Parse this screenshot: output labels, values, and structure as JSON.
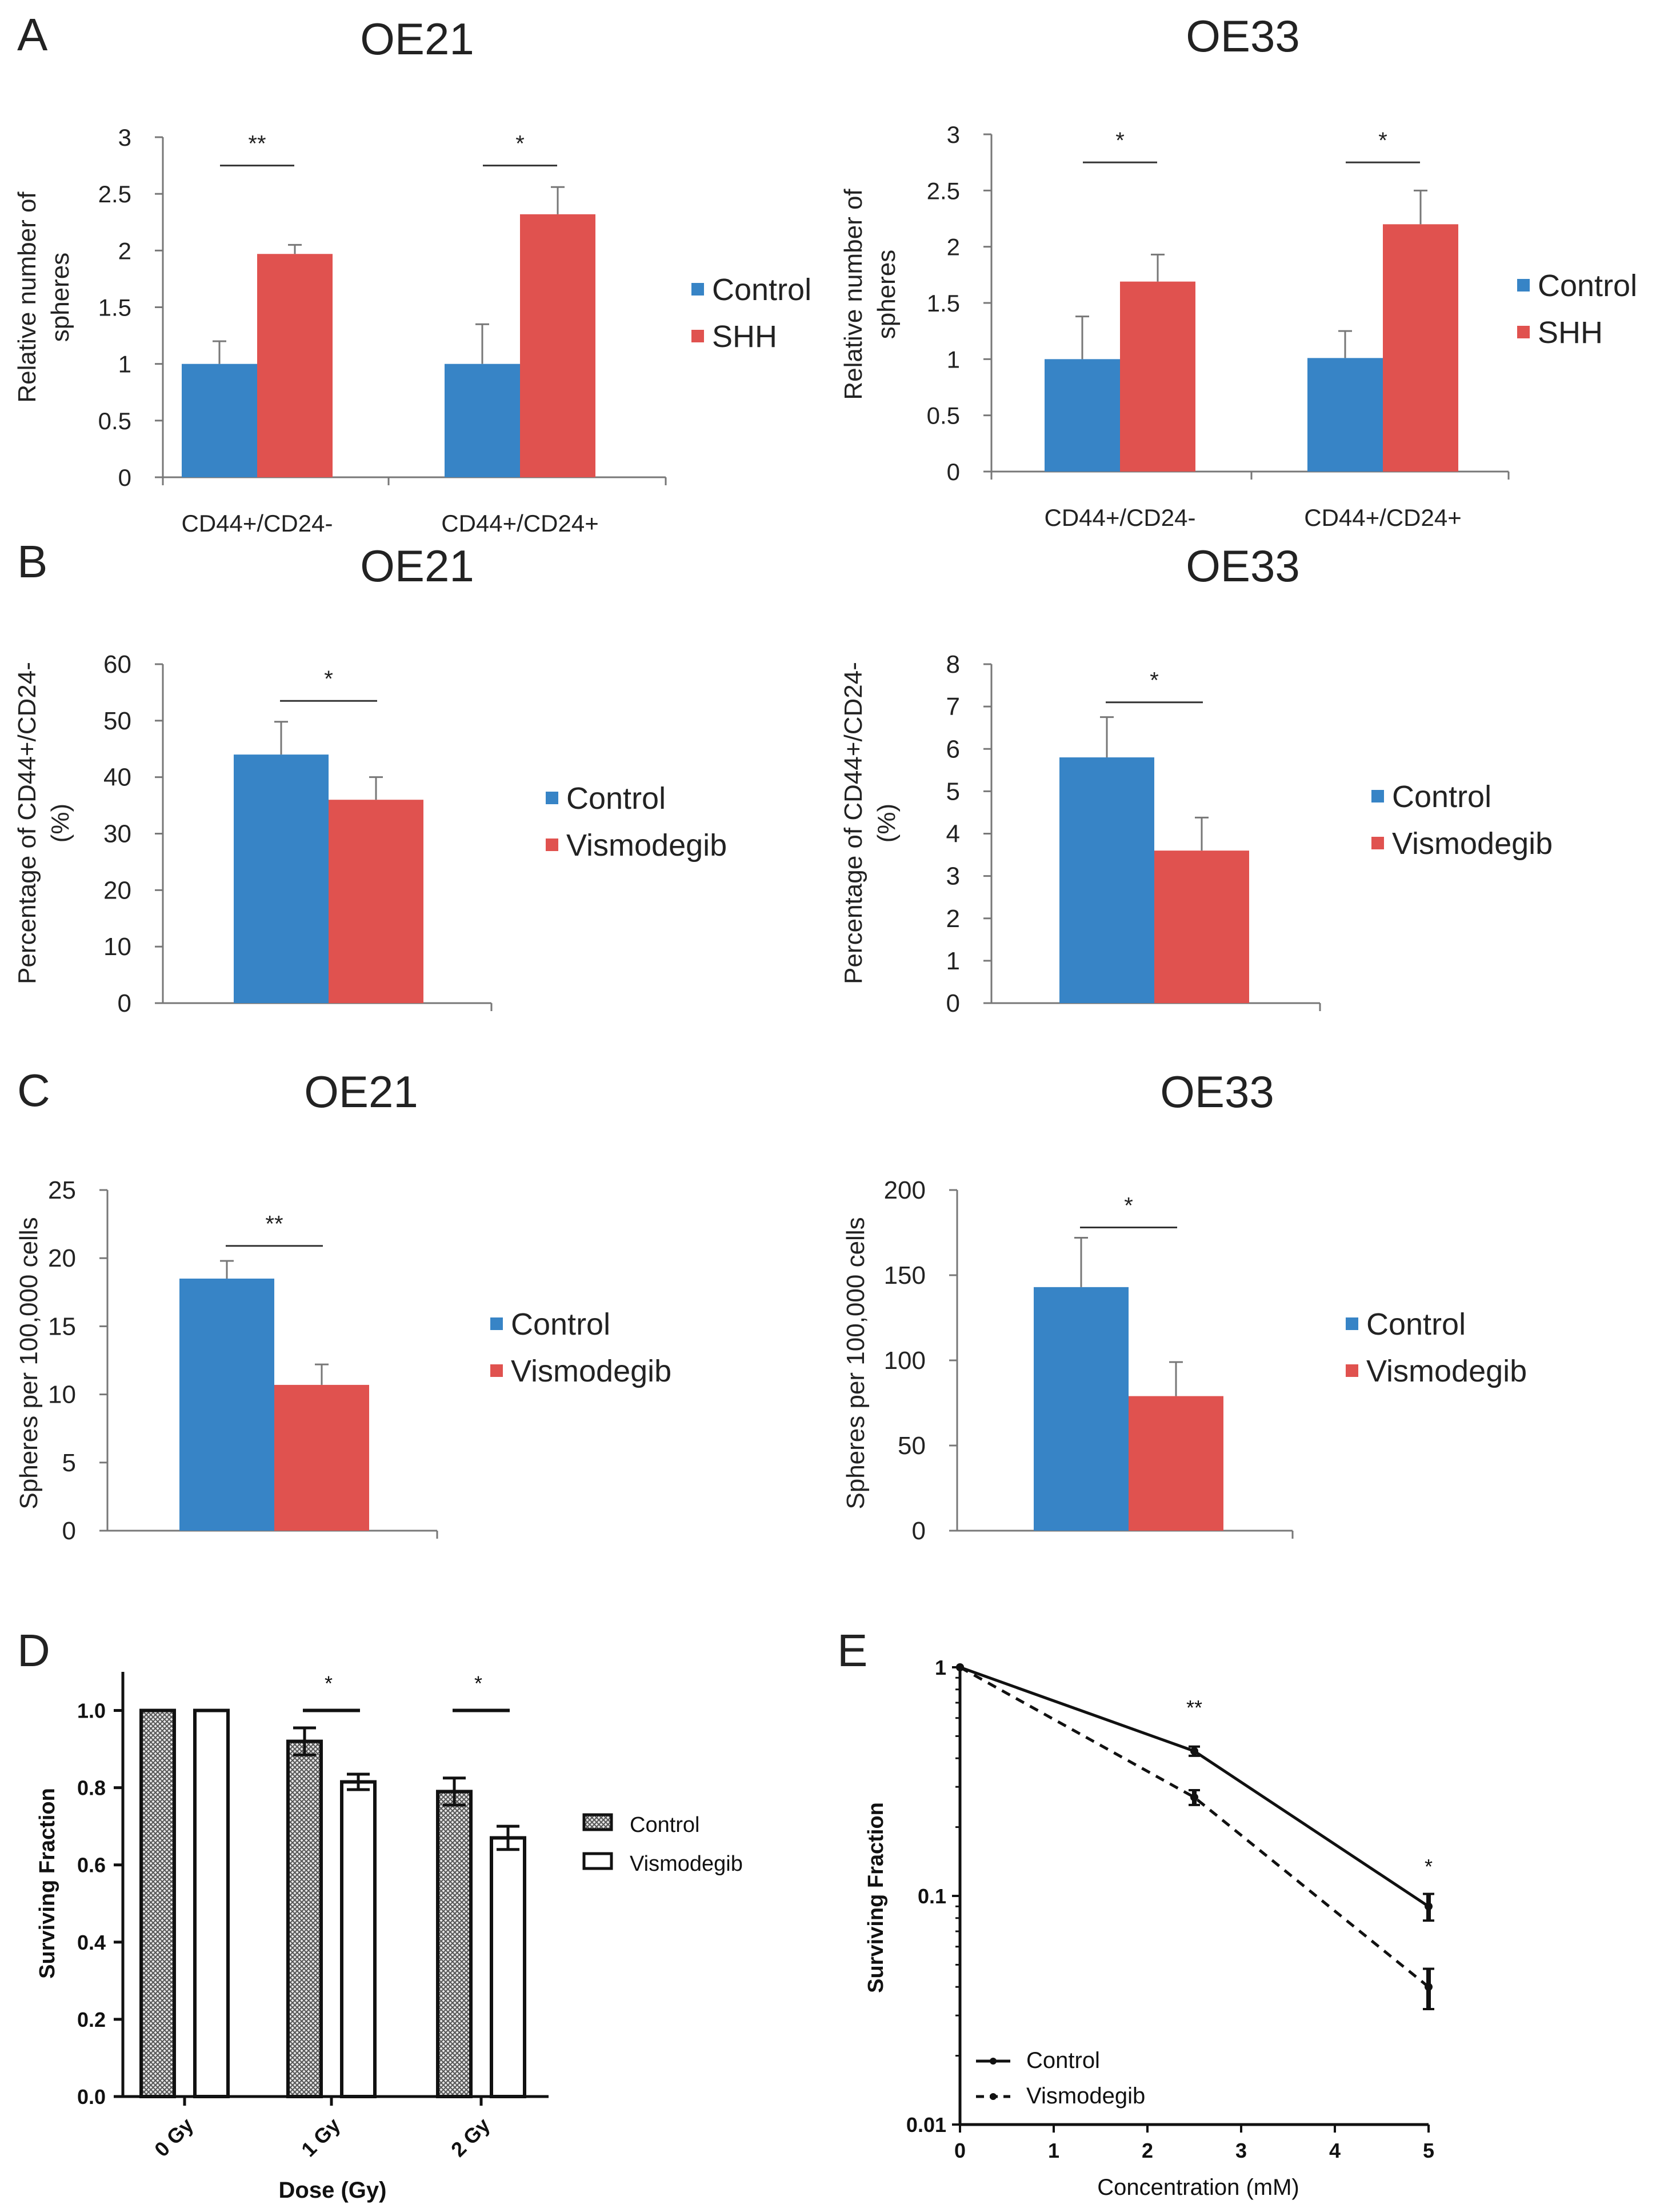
{
  "panel_labels": [
    "A",
    "B",
    "C",
    "D",
    "E"
  ],
  "colors": {
    "control": "#3784C6",
    "treatment": "#E0524F",
    "axis": "#777777",
    "bw": "#111111"
  },
  "chart_data": [
    {
      "id": "A1",
      "type": "bar",
      "panel": "A",
      "title": "OE21",
      "ylabel_lines": [
        "Relative number of",
        "spheres"
      ],
      "xlabel": "",
      "categories": [
        "CD44+/CD24-",
        "CD44+/CD24+"
      ],
      "series": [
        {
          "name": "Control",
          "values": [
            1.0,
            1.0
          ],
          "errors": [
            0.2,
            0.35
          ]
        },
        {
          "name": "SHH",
          "values": [
            1.97,
            2.32
          ],
          "errors": [
            0.08,
            0.24
          ]
        }
      ],
      "ylim": [
        0,
        3
      ],
      "yticks": [
        0,
        0.5,
        1,
        1.5,
        2,
        2.5,
        3
      ],
      "ytick_labels": [
        "0",
        "0.5",
        "1",
        "1.5",
        "2",
        "2.5",
        "3"
      ],
      "legend": [
        "Control",
        "SHH"
      ],
      "significance": [
        {
          "group": 0,
          "label": "**",
          "y": 2.75
        },
        {
          "group": 1,
          "label": "*",
          "y": 2.75
        }
      ]
    },
    {
      "id": "A2",
      "type": "bar",
      "panel": "A",
      "title": "OE33",
      "ylabel_lines": [
        "Relative number of",
        "spheres"
      ],
      "xlabel": "",
      "categories": [
        "CD44+/CD24-",
        "CD44+/CD24+"
      ],
      "series": [
        {
          "name": "Control",
          "values": [
            1.0,
            1.01
          ],
          "errors": [
            0.38,
            0.24
          ]
        },
        {
          "name": "SHH",
          "values": [
            1.69,
            2.2
          ],
          "errors": [
            0.24,
            0.3
          ]
        }
      ],
      "ylim": [
        0,
        3
      ],
      "yticks": [
        0,
        0.5,
        1,
        1.5,
        2,
        2.5,
        3
      ],
      "ytick_labels": [
        "0",
        "0.5",
        "1",
        "1.5",
        "2",
        "2.5",
        "3"
      ],
      "legend": [
        "Control",
        "SHH"
      ],
      "significance": [
        {
          "group": 0,
          "label": "*",
          "y": 2.75
        },
        {
          "group": 1,
          "label": "*",
          "y": 2.75
        }
      ]
    },
    {
      "id": "B1",
      "type": "bar",
      "panel": "B",
      "title": "OE21",
      "ylabel_lines": [
        "Percentage of CD44+/CD24-",
        "(%)"
      ],
      "xlabel": "",
      "categories": [
        ""
      ],
      "series": [
        {
          "name": "Control",
          "values": [
            44
          ],
          "errors": [
            5.8
          ]
        },
        {
          "name": "Vismodegib",
          "values": [
            36
          ],
          "errors": [
            4
          ]
        }
      ],
      "ylim": [
        0,
        60
      ],
      "yticks": [
        0,
        10,
        20,
        30,
        40,
        50,
        60
      ],
      "ytick_labels": [
        "0",
        "10",
        "20",
        "30",
        "40",
        "50",
        "60"
      ],
      "legend": [
        "Control",
        "Vismodegib"
      ],
      "significance": [
        {
          "group": 0,
          "label": "*",
          "y": 53.5
        }
      ]
    },
    {
      "id": "B2",
      "type": "bar",
      "panel": "B",
      "title": "OE33",
      "ylabel_lines": [
        "Percentage of CD44+/CD24-",
        "(%)"
      ],
      "xlabel": "",
      "categories": [
        ""
      ],
      "series": [
        {
          "name": "Control",
          "values": [
            5.8
          ],
          "errors": [
            0.95
          ]
        },
        {
          "name": "Vismodegib",
          "values": [
            3.6
          ],
          "errors": [
            0.78
          ]
        }
      ],
      "ylim": [
        0,
        8
      ],
      "yticks": [
        0,
        1,
        2,
        3,
        4,
        5,
        6,
        7,
        8
      ],
      "ytick_labels": [
        "0",
        "1",
        "2",
        "3",
        "4",
        "5",
        "6",
        "7",
        "8"
      ],
      "legend": [
        "Control",
        "Vismodegib"
      ],
      "significance": [
        {
          "group": 0,
          "label": "*",
          "y": 7.1
        }
      ]
    },
    {
      "id": "C1",
      "type": "bar",
      "panel": "C",
      "title": "OE21",
      "ylabel_lines": [
        "Spheres per 100,000 cells"
      ],
      "xlabel": "",
      "categories": [
        ""
      ],
      "series": [
        {
          "name": "Control",
          "values": [
            18.5
          ],
          "errors": [
            1.3
          ]
        },
        {
          "name": "Vismodegib",
          "values": [
            10.7
          ],
          "errors": [
            1.5
          ]
        }
      ],
      "ylim": [
        0,
        25
      ],
      "yticks": [
        0,
        5,
        10,
        15,
        20,
        25
      ],
      "ytick_labels": [
        "0",
        "5",
        "10",
        "15",
        "20",
        "25"
      ],
      "legend": [
        "Control",
        "Vismodegib"
      ],
      "significance": [
        {
          "group": 0,
          "label": "**",
          "y": 20.9
        }
      ]
    },
    {
      "id": "C2",
      "type": "bar",
      "panel": "C",
      "title": "OE33",
      "ylabel_lines": [
        "Spheres per 100,000 cells"
      ],
      "xlabel": "",
      "categories": [
        ""
      ],
      "series": [
        {
          "name": "Control",
          "values": [
            143
          ],
          "errors": [
            29
          ]
        },
        {
          "name": "Vismodegib",
          "values": [
            79
          ],
          "errors": [
            20
          ]
        }
      ],
      "ylim": [
        0,
        200
      ],
      "yticks": [
        0,
        50,
        100,
        150,
        200
      ],
      "ytick_labels": [
        "0",
        "50",
        "100",
        "150",
        "200"
      ],
      "legend": [
        "Control",
        "Vismodegib"
      ],
      "significance": [
        {
          "group": 0,
          "label": "*",
          "y": 178
        }
      ]
    },
    {
      "id": "D",
      "type": "bar",
      "panel": "D",
      "title": "",
      "ylabel": "Surviving Fraction",
      "xlabel": "Dose (Gy)",
      "categories": [
        "0 Gy",
        "1 Gy",
        "2 Gy"
      ],
      "series": [
        {
          "name": "Control",
          "values": [
            1.0,
            0.92,
            0.79
          ],
          "errors": [
            0.0,
            0.035,
            0.035
          ]
        },
        {
          "name": "Vismodegib",
          "values": [
            1.0,
            0.815,
            0.67
          ],
          "errors": [
            0.0,
            0.02,
            0.03
          ]
        }
      ],
      "ylim": [
        0,
        1.1
      ],
      "yticks": [
        0,
        0.2,
        0.4,
        0.6,
        0.8,
        1.0
      ],
      "ytick_labels": [
        "0.0",
        "0.2",
        "0.4",
        "0.6",
        "0.8",
        "1.0"
      ],
      "legend": [
        "Control",
        "Vismodegib"
      ],
      "significance": [
        {
          "group": 1,
          "label": "*",
          "y": 1.0
        },
        {
          "group": 2,
          "label": "*",
          "y": 1.0
        }
      ]
    },
    {
      "id": "E",
      "type": "line",
      "panel": "E",
      "title": "",
      "ylabel": "Surviving Fraction",
      "xlabel": "Concentration (mM)",
      "yscale": "log",
      "xlim": [
        0,
        5
      ],
      "ylim": [
        0.01,
        1
      ],
      "xticks": [
        0,
        1,
        2,
        3,
        4,
        5
      ],
      "xtick_labels": [
        "0",
        "1",
        "2",
        "3",
        "4",
        "5"
      ],
      "yticks": [
        0.01,
        0.1,
        1
      ],
      "ytick_labels": [
        "0.01",
        "0.1",
        "1"
      ],
      "series": [
        {
          "name": "Control",
          "x": [
            0,
            2.5,
            5
          ],
          "y": [
            1.0,
            0.43,
            0.09
          ],
          "errors": [
            0,
            0.02,
            0.012
          ],
          "style": "solid"
        },
        {
          "name": "Vismodegib",
          "x": [
            0,
            2.5,
            5
          ],
          "y": [
            1.0,
            0.27,
            0.04
          ],
          "errors": [
            0,
            0.02,
            0.008
          ],
          "style": "dashed"
        }
      ],
      "legend": [
        "Control",
        "Vismodegib"
      ],
      "significance": [
        {
          "x": 2.5,
          "label": "**",
          "y": 0.62
        },
        {
          "x": 5,
          "label": "*",
          "y": 0.125
        }
      ]
    }
  ]
}
